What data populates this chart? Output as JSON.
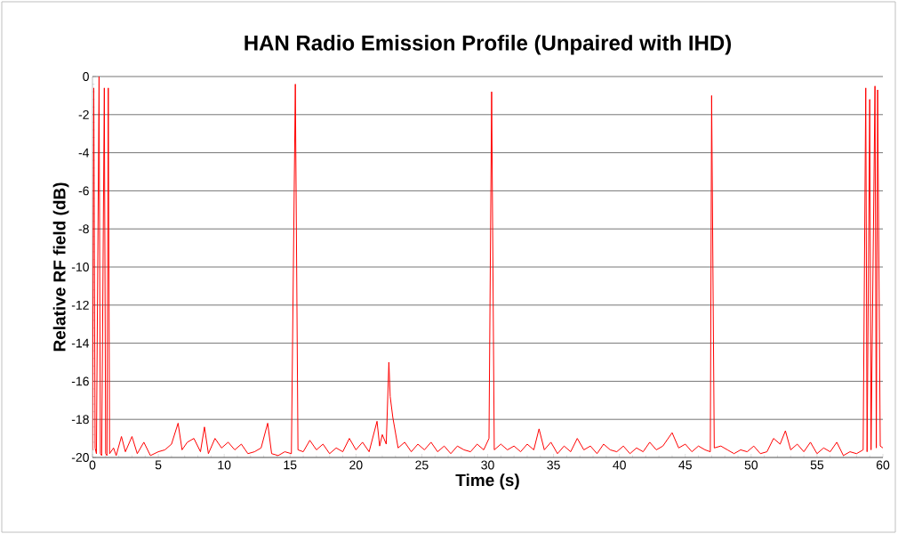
{
  "chart_data": {
    "type": "line",
    "title": "HAN Radio Emission Profile (Unpaired with IHD)",
    "xlabel": "Time (s)",
    "ylabel": "Relative RF field (dB)",
    "xlim": [
      0,
      60
    ],
    "ylim": [
      -20,
      0
    ],
    "xticks": [
      0,
      5,
      10,
      15,
      20,
      25,
      30,
      35,
      40,
      45,
      50,
      55,
      60
    ],
    "yticks": [
      -20,
      -18,
      -16,
      -14,
      -12,
      -10,
      -8,
      -6,
      -4,
      -2,
      0
    ],
    "grid": "y",
    "legend": false,
    "series": [
      {
        "color": "#ff0000",
        "x": [
          0,
          0.1,
          0.2,
          0.3,
          0.5,
          0.6,
          0.7,
          0.9,
          1.0,
          1.1,
          1.2,
          1.3,
          1.6,
          1.8,
          2.2,
          2.5,
          3.0,
          3.4,
          3.9,
          4.4,
          5.0,
          5.5,
          6.0,
          6.5,
          6.8,
          7.2,
          7.7,
          8.2,
          8.5,
          8.8,
          9.3,
          9.8,
          10.3,
          10.8,
          11.3,
          11.8,
          12.3,
          12.8,
          13.3,
          13.6,
          14.1,
          14.6,
          15.1,
          15.4,
          15.6,
          16.0,
          16.5,
          17.0,
          17.5,
          18.0,
          18.5,
          19.0,
          19.5,
          20.0,
          20.5,
          21.0,
          21.6,
          21.8,
          22.0,
          22.3,
          22.5,
          22.6,
          22.8,
          23.2,
          23.7,
          24.2,
          24.7,
          25.2,
          25.7,
          26.2,
          26.7,
          27.2,
          27.7,
          28.2,
          28.7,
          29.2,
          29.7,
          30.1,
          30.3,
          30.5,
          31.0,
          31.5,
          32.0,
          32.5,
          33.0,
          33.5,
          33.9,
          34.3,
          34.8,
          35.3,
          35.8,
          36.3,
          36.8,
          37.3,
          37.8,
          38.3,
          38.8,
          39.3,
          39.8,
          40.3,
          40.8,
          41.3,
          41.8,
          42.3,
          42.8,
          43.3,
          44.0,
          44.5,
          45.0,
          45.5,
          46.0,
          46.5,
          46.9,
          47.0,
          47.2,
          47.7,
          48.2,
          48.7,
          49.2,
          49.7,
          50.2,
          50.7,
          51.2,
          51.7,
          52.2,
          52.6,
          53.0,
          53.5,
          54.0,
          54.5,
          55.0,
          55.5,
          56.0,
          56.5,
          57.0,
          57.5,
          58.0,
          58.5,
          58.7,
          58.8,
          59.0,
          59.1,
          59.4,
          59.5,
          59.6,
          59.8,
          60
        ],
        "values": [
          -19.6,
          -0.6,
          -19.5,
          -19.8,
          0,
          -19.8,
          -19.9,
          -0.6,
          -19.8,
          -19.9,
          -0.6,
          -19.8,
          -19.5,
          -19.9,
          -18.9,
          -19.7,
          -18.9,
          -19.8,
          -19.2,
          -19.9,
          -19.7,
          -19.6,
          -19.3,
          -18.2,
          -19.6,
          -19.2,
          -19.0,
          -19.7,
          -18.4,
          -19.8,
          -19.0,
          -19.5,
          -19.2,
          -19.6,
          -19.3,
          -19.8,
          -19.7,
          -19.5,
          -18.2,
          -19.8,
          -19.9,
          -19.7,
          -19.8,
          -0.4,
          -19.6,
          -19.7,
          -19.1,
          -19.6,
          -19.3,
          -19.8,
          -19.5,
          -19.7,
          -19.0,
          -19.6,
          -19.2,
          -19.7,
          -18.1,
          -19.4,
          -18.8,
          -19.3,
          -15.0,
          -16.8,
          -17.9,
          -19.5,
          -19.2,
          -19.7,
          -19.3,
          -19.6,
          -19.2,
          -19.7,
          -19.4,
          -19.8,
          -19.4,
          -19.6,
          -19.7,
          -19.3,
          -19.6,
          -19.0,
          -0.8,
          -19.6,
          -19.3,
          -19.6,
          -19.4,
          -19.7,
          -19.3,
          -19.6,
          -18.5,
          -19.6,
          -19.2,
          -19.8,
          -19.4,
          -19.7,
          -19.0,
          -19.6,
          -19.4,
          -19.8,
          -19.3,
          -19.6,
          -19.7,
          -19.4,
          -19.8,
          -19.5,
          -19.7,
          -19.2,
          -19.6,
          -19.4,
          -18.7,
          -19.5,
          -19.3,
          -19.7,
          -19.4,
          -19.6,
          -19.7,
          -1.0,
          -19.5,
          -19.4,
          -19.6,
          -19.8,
          -19.6,
          -19.7,
          -19.4,
          -19.8,
          -19.7,
          -19.0,
          -19.3,
          -18.6,
          -19.6,
          -19.3,
          -19.7,
          -19.2,
          -19.8,
          -19.5,
          -19.7,
          -19.2,
          -19.9,
          -19.7,
          -19.8,
          -19.6,
          -0.6,
          -19.7,
          -1.2,
          -19.6,
          -0.5,
          -19.5,
          -0.7,
          -19.4,
          -19.5
        ]
      }
    ]
  }
}
